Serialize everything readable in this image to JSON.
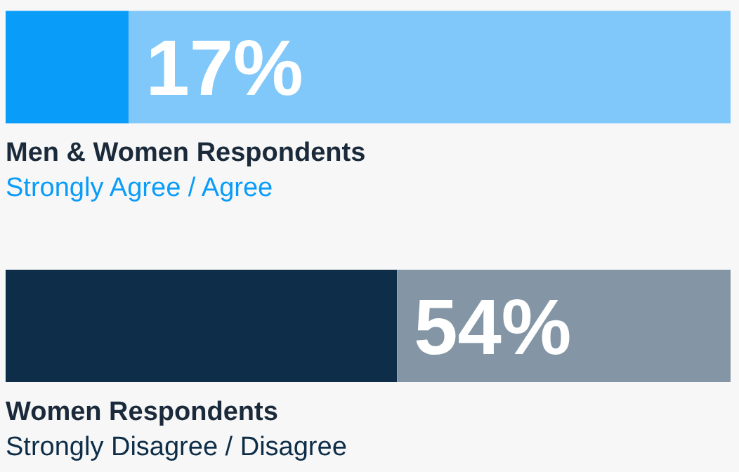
{
  "chart_data": {
    "type": "bar",
    "orientation": "horizontal",
    "stacked": true,
    "categories": [
      "Men & Women Respondents",
      "Women Respondents"
    ],
    "xlim": [
      0,
      100
    ],
    "tick_labels": false,
    "series": [
      {
        "colors": [
          "#0a9cf9",
          "#0d2d48"
        ],
        "values": [
          17,
          54
        ],
        "value_labels": [
          "17%",
          "54%"
        ]
      },
      {
        "colors": [
          "#80c8fa",
          "#8496a5"
        ],
        "values": [
          83,
          46
        ]
      }
    ],
    "annotations": [
      "Strongly Agree / Agree",
      "Strongly Disagree / Disagree"
    ]
  }
}
